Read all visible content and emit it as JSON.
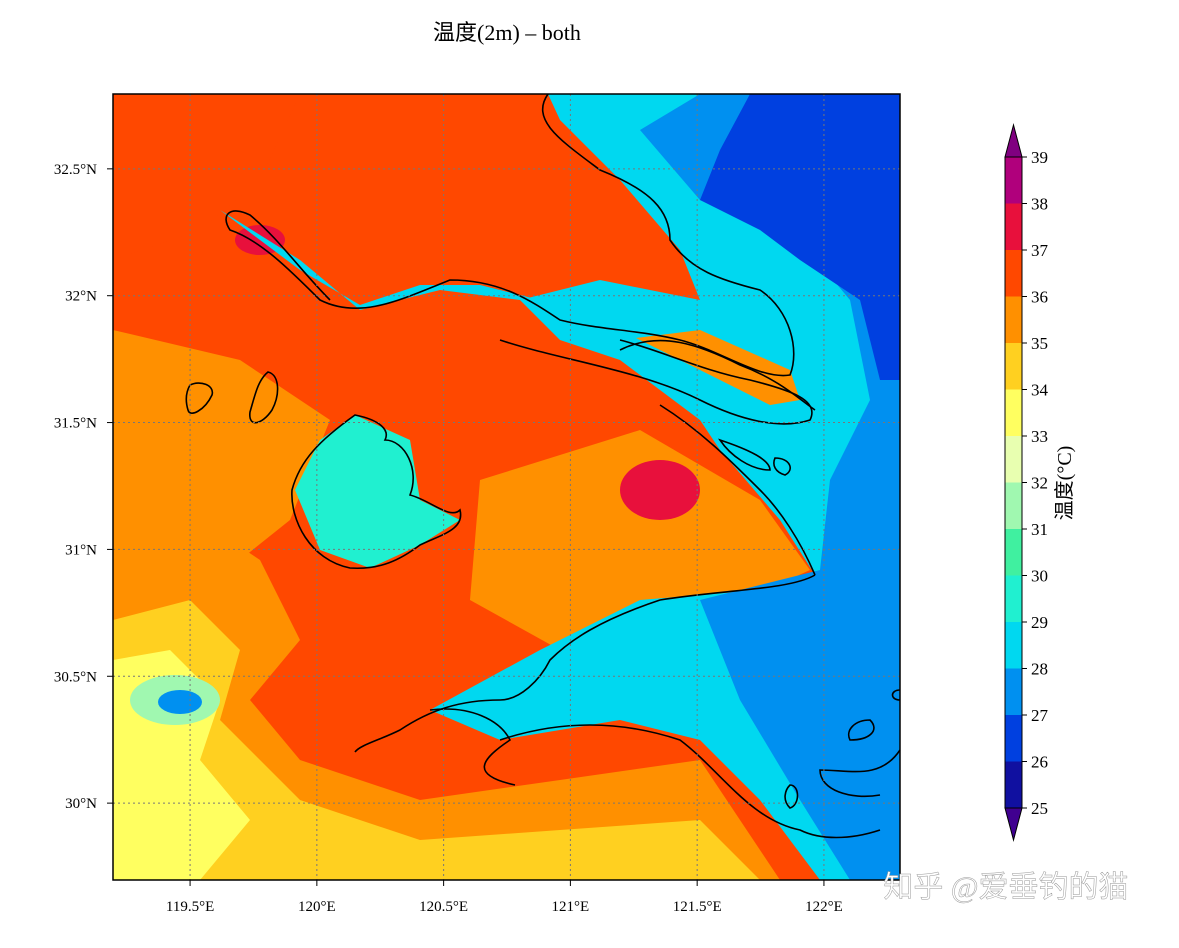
{
  "title": "温度(2m) – both",
  "map": {
    "xlim": [
      119.196,
      122.3
    ],
    "ylim": [
      29.697,
      32.795
    ],
    "xticks": [
      {
        "value": 119.5,
        "label": "119.5°E"
      },
      {
        "value": 120,
        "label": "120°E"
      },
      {
        "value": 120.5,
        "label": "120.5°E"
      },
      {
        "value": 121,
        "label": "121°E"
      },
      {
        "value": 121.5,
        "label": "121.5°E"
      },
      {
        "value": 122,
        "label": "122°E"
      }
    ],
    "yticks": [
      {
        "value": 30,
        "label": "30°N"
      },
      {
        "value": 30.5,
        "label": "30.5°N"
      },
      {
        "value": 31,
        "label": "31°N"
      },
      {
        "value": 31.5,
        "label": "31.5°N"
      },
      {
        "value": 32,
        "label": "32°N"
      },
      {
        "value": 32.5,
        "label": "32.5°N"
      }
    ],
    "grid": true
  },
  "colorbar": {
    "label": "温度(°C)",
    "levels": [
      25,
      26,
      27,
      28,
      29,
      30,
      31,
      32,
      33,
      34,
      35,
      36,
      37,
      38,
      39
    ],
    "colors": [
      "#1010a0",
      "#0040e0",
      "#0090f0",
      "#00d8f0",
      "#20f0d0",
      "#40f0a0",
      "#a0f8b0",
      "#e8ffb0",
      "#ffff60",
      "#ffd020",
      "#ff9000",
      "#ff4800",
      "#e8103c",
      "#b0007c"
    ],
    "under_color": "#400090",
    "over_color": "#800080"
  },
  "watermark": "知乎 @爱垂钓的猫"
}
